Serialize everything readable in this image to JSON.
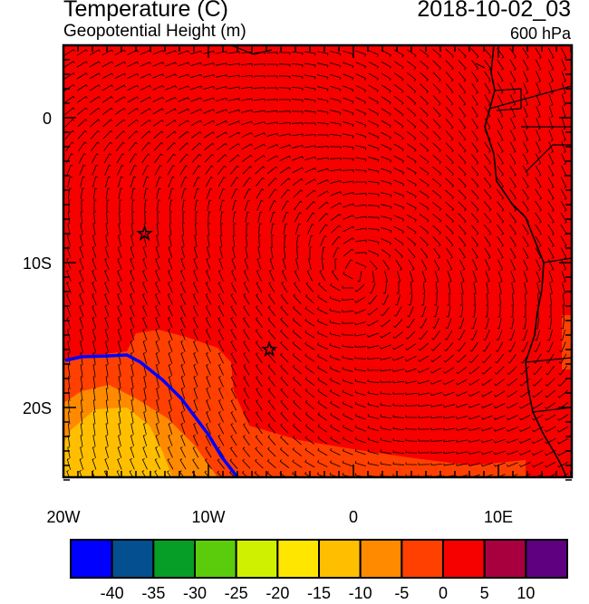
{
  "header": {
    "title": "Temperature (C)",
    "subtitle": "Geopotential Height (m)",
    "datetime": "2018-10-02_03",
    "level": "600 hPa"
  },
  "map": {
    "lon_range": [
      -20,
      15
    ],
    "lat_range": [
      -25,
      5
    ],
    "x_tick_labels": [
      "20W",
      "10W",
      "0",
      "10E"
    ],
    "y_tick_labels": [
      "0",
      "10S",
      "20S"
    ],
    "markers": [
      {
        "type": "star",
        "lon": -14.4,
        "lat": -8.0
      },
      {
        "type": "star",
        "lon": -5.8,
        "lat": -16.0
      }
    ],
    "background_color": "#ff0000",
    "contour_color": "#0000ff"
  },
  "colorbar": {
    "colors": [
      "#0000ff",
      "#034f8f",
      "#069e26",
      "#5bcc0b",
      "#cff000",
      "#ffe600",
      "#ffbf00",
      "#ff8a00",
      "#ff4000",
      "#f70000",
      "#a8003e",
      "#5e0080"
    ],
    "labels": [
      "-40",
      "-35",
      "-30",
      "-25",
      "-20",
      "-15",
      "-10",
      "-5",
      "0",
      "5",
      "10"
    ]
  }
}
